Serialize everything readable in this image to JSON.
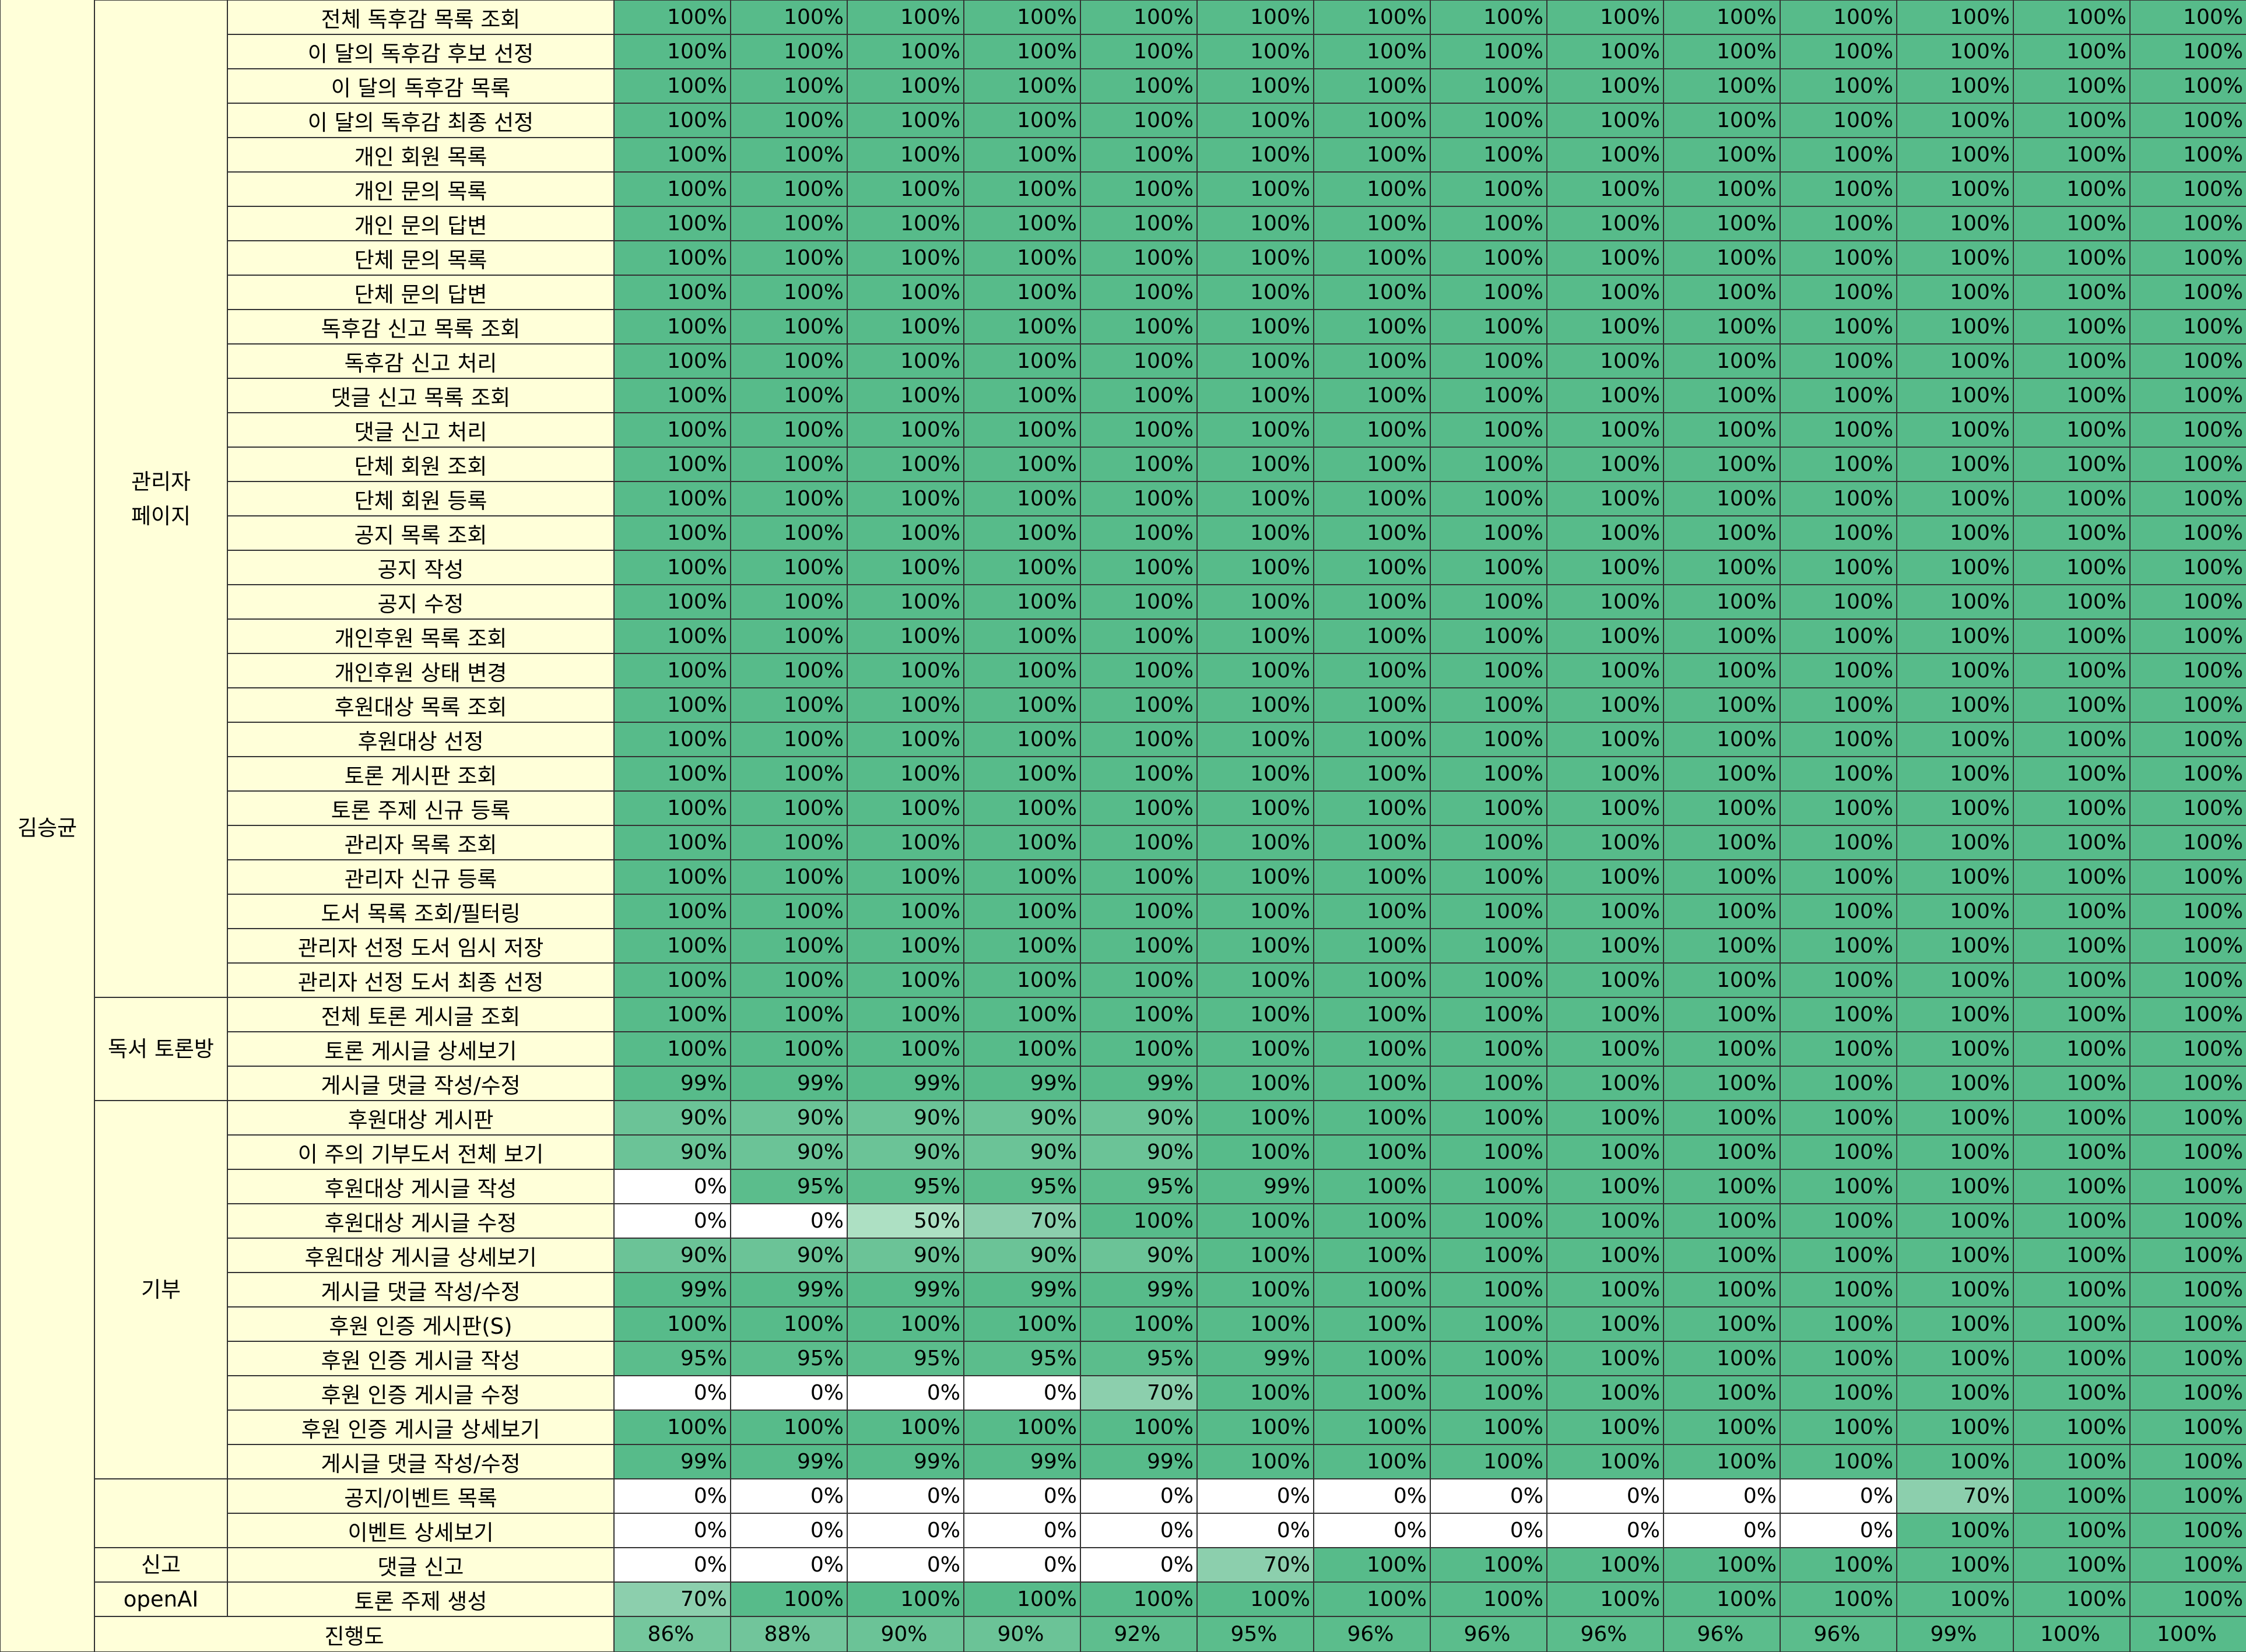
{
  "colors": {
    "label_bg": "#ffffd9",
    "grid_line": "#333333",
    "p100": "#57bb8a",
    "p99": "#57bb8a",
    "p95": "#5bbd8c",
    "p92": "#5ebe8e",
    "p90": "#6bc397",
    "p88": "#71c59b",
    "p86": "#74c79d",
    "p70": "#8ccfad",
    "p50": "#ade0c3",
    "p0": "#ffffff"
  },
  "groups": [
    {
      "name": "김승균",
      "row_start": 0,
      "row_count": 46
    }
  ],
  "categories": [
    {
      "label": "관리자\n페이지",
      "row_start": 0,
      "row_count": 29
    },
    {
      "label": "독서 토론방",
      "row_start": 29,
      "row_count": 3
    },
    {
      "label": "",
      "row_start": 32,
      "row_count": 11
    },
    {
      "label": "기부",
      "row_start": 32,
      "row_count": 11
    },
    {
      "label": "",
      "row_start": 43,
      "row_count": 2
    },
    {
      "label": "신고",
      "row_start": 45,
      "row_count": 1
    },
    {
      "label": "openAI",
      "row_start": 46,
      "row_count": 1
    }
  ],
  "rows": [
    {
      "feature": "전체 독후감 목록 조회",
      "values": [
        "100%",
        "100%",
        "100%",
        "100%",
        "100%",
        "100%",
        "100%",
        "100%",
        "100%",
        "100%",
        "100%",
        "100%",
        "100%",
        "100%"
      ]
    },
    {
      "feature": "이 달의 독후감 후보 선정",
      "values": [
        "100%",
        "100%",
        "100%",
        "100%",
        "100%",
        "100%",
        "100%",
        "100%",
        "100%",
        "100%",
        "100%",
        "100%",
        "100%",
        "100%"
      ]
    },
    {
      "feature": "이 달의 독후감 목록",
      "values": [
        "100%",
        "100%",
        "100%",
        "100%",
        "100%",
        "100%",
        "100%",
        "100%",
        "100%",
        "100%",
        "100%",
        "100%",
        "100%",
        "100%"
      ]
    },
    {
      "feature": "이 달의 독후감 최종 선정",
      "values": [
        "100%",
        "100%",
        "100%",
        "100%",
        "100%",
        "100%",
        "100%",
        "100%",
        "100%",
        "100%",
        "100%",
        "100%",
        "100%",
        "100%"
      ]
    },
    {
      "feature": "개인 회원 목록",
      "values": [
        "100%",
        "100%",
        "100%",
        "100%",
        "100%",
        "100%",
        "100%",
        "100%",
        "100%",
        "100%",
        "100%",
        "100%",
        "100%",
        "100%"
      ]
    },
    {
      "feature": "개인 문의 목록",
      "values": [
        "100%",
        "100%",
        "100%",
        "100%",
        "100%",
        "100%",
        "100%",
        "100%",
        "100%",
        "100%",
        "100%",
        "100%",
        "100%",
        "100%"
      ]
    },
    {
      "feature": "개인 문의 답변",
      "values": [
        "100%",
        "100%",
        "100%",
        "100%",
        "100%",
        "100%",
        "100%",
        "100%",
        "100%",
        "100%",
        "100%",
        "100%",
        "100%",
        "100%"
      ]
    },
    {
      "feature": "단체 문의 목록",
      "values": [
        "100%",
        "100%",
        "100%",
        "100%",
        "100%",
        "100%",
        "100%",
        "100%",
        "100%",
        "100%",
        "100%",
        "100%",
        "100%",
        "100%"
      ]
    },
    {
      "feature": "단체 문의 답변",
      "values": [
        "100%",
        "100%",
        "100%",
        "100%",
        "100%",
        "100%",
        "100%",
        "100%",
        "100%",
        "100%",
        "100%",
        "100%",
        "100%",
        "100%"
      ]
    },
    {
      "feature": "독후감 신고 목록 조회",
      "values": [
        "100%",
        "100%",
        "100%",
        "100%",
        "100%",
        "100%",
        "100%",
        "100%",
        "100%",
        "100%",
        "100%",
        "100%",
        "100%",
        "100%"
      ]
    },
    {
      "feature": "독후감 신고 처리",
      "values": [
        "100%",
        "100%",
        "100%",
        "100%",
        "100%",
        "100%",
        "100%",
        "100%",
        "100%",
        "100%",
        "100%",
        "100%",
        "100%",
        "100%"
      ]
    },
    {
      "feature": "댓글 신고 목록 조회",
      "values": [
        "100%",
        "100%",
        "100%",
        "100%",
        "100%",
        "100%",
        "100%",
        "100%",
        "100%",
        "100%",
        "100%",
        "100%",
        "100%",
        "100%"
      ]
    },
    {
      "feature": "댓글 신고 처리",
      "values": [
        "100%",
        "100%",
        "100%",
        "100%",
        "100%",
        "100%",
        "100%",
        "100%",
        "100%",
        "100%",
        "100%",
        "100%",
        "100%",
        "100%"
      ]
    },
    {
      "feature": "단체 회원 조회",
      "values": [
        "100%",
        "100%",
        "100%",
        "100%",
        "100%",
        "100%",
        "100%",
        "100%",
        "100%",
        "100%",
        "100%",
        "100%",
        "100%",
        "100%"
      ]
    },
    {
      "feature": "단체 회원 등록",
      "values": [
        "100%",
        "100%",
        "100%",
        "100%",
        "100%",
        "100%",
        "100%",
        "100%",
        "100%",
        "100%",
        "100%",
        "100%",
        "100%",
        "100%"
      ]
    },
    {
      "feature": "공지 목록 조회",
      "values": [
        "100%",
        "100%",
        "100%",
        "100%",
        "100%",
        "100%",
        "100%",
        "100%",
        "100%",
        "100%",
        "100%",
        "100%",
        "100%",
        "100%"
      ]
    },
    {
      "feature": "공지 작성",
      "values": [
        "100%",
        "100%",
        "100%",
        "100%",
        "100%",
        "100%",
        "100%",
        "100%",
        "100%",
        "100%",
        "100%",
        "100%",
        "100%",
        "100%"
      ]
    },
    {
      "feature": "공지 수정",
      "values": [
        "100%",
        "100%",
        "100%",
        "100%",
        "100%",
        "100%",
        "100%",
        "100%",
        "100%",
        "100%",
        "100%",
        "100%",
        "100%",
        "100%"
      ]
    },
    {
      "feature": "개인후원 목록 조회",
      "values": [
        "100%",
        "100%",
        "100%",
        "100%",
        "100%",
        "100%",
        "100%",
        "100%",
        "100%",
        "100%",
        "100%",
        "100%",
        "100%",
        "100%"
      ]
    },
    {
      "feature": "개인후원 상태 변경",
      "values": [
        "100%",
        "100%",
        "100%",
        "100%",
        "100%",
        "100%",
        "100%",
        "100%",
        "100%",
        "100%",
        "100%",
        "100%",
        "100%",
        "100%"
      ]
    },
    {
      "feature": "후원대상 목록 조회",
      "values": [
        "100%",
        "100%",
        "100%",
        "100%",
        "100%",
        "100%",
        "100%",
        "100%",
        "100%",
        "100%",
        "100%",
        "100%",
        "100%",
        "100%"
      ]
    },
    {
      "feature": "후원대상 선정",
      "values": [
        "100%",
        "100%",
        "100%",
        "100%",
        "100%",
        "100%",
        "100%",
        "100%",
        "100%",
        "100%",
        "100%",
        "100%",
        "100%",
        "100%"
      ]
    },
    {
      "feature": "토론 게시판 조회",
      "values": [
        "100%",
        "100%",
        "100%",
        "100%",
        "100%",
        "100%",
        "100%",
        "100%",
        "100%",
        "100%",
        "100%",
        "100%",
        "100%",
        "100%"
      ]
    },
    {
      "feature": "토론 주제 신규 등록",
      "values": [
        "100%",
        "100%",
        "100%",
        "100%",
        "100%",
        "100%",
        "100%",
        "100%",
        "100%",
        "100%",
        "100%",
        "100%",
        "100%",
        "100%"
      ]
    },
    {
      "feature": "관리자 목록 조회",
      "values": [
        "100%",
        "100%",
        "100%",
        "100%",
        "100%",
        "100%",
        "100%",
        "100%",
        "100%",
        "100%",
        "100%",
        "100%",
        "100%",
        "100%"
      ]
    },
    {
      "feature": "관리자 신규 등록",
      "values": [
        "100%",
        "100%",
        "100%",
        "100%",
        "100%",
        "100%",
        "100%",
        "100%",
        "100%",
        "100%",
        "100%",
        "100%",
        "100%",
        "100%"
      ]
    },
    {
      "feature": "도서 목록 조회/필터링",
      "values": [
        "100%",
        "100%",
        "100%",
        "100%",
        "100%",
        "100%",
        "100%",
        "100%",
        "100%",
        "100%",
        "100%",
        "100%",
        "100%",
        "100%"
      ]
    },
    {
      "feature": "관리자 선정 도서 임시 저장",
      "values": [
        "100%",
        "100%",
        "100%",
        "100%",
        "100%",
        "100%",
        "100%",
        "100%",
        "100%",
        "100%",
        "100%",
        "100%",
        "100%",
        "100%"
      ]
    },
    {
      "feature": "관리자 선정 도서 최종 선정",
      "values": [
        "100%",
        "100%",
        "100%",
        "100%",
        "100%",
        "100%",
        "100%",
        "100%",
        "100%",
        "100%",
        "100%",
        "100%",
        "100%",
        "100%"
      ]
    },
    {
      "feature": "전체 토론 게시글 조회",
      "values": [
        "100%",
        "100%",
        "100%",
        "100%",
        "100%",
        "100%",
        "100%",
        "100%",
        "100%",
        "100%",
        "100%",
        "100%",
        "100%",
        "100%"
      ]
    },
    {
      "feature": "토론 게시글 상세보기",
      "values": [
        "100%",
        "100%",
        "100%",
        "100%",
        "100%",
        "100%",
        "100%",
        "100%",
        "100%",
        "100%",
        "100%",
        "100%",
        "100%",
        "100%"
      ]
    },
    {
      "feature": "게시글 댓글 작성/수정",
      "values": [
        "99%",
        "99%",
        "99%",
        "99%",
        "99%",
        "100%",
        "100%",
        "100%",
        "100%",
        "100%",
        "100%",
        "100%",
        "100%",
        "100%"
      ]
    },
    {
      "feature": "후원대상 게시판",
      "values": [
        "90%",
        "90%",
        "90%",
        "90%",
        "90%",
        "100%",
        "100%",
        "100%",
        "100%",
        "100%",
        "100%",
        "100%",
        "100%",
        "100%"
      ]
    },
    {
      "feature": "이 주의 기부도서 전체 보기",
      "values": [
        "90%",
        "90%",
        "90%",
        "90%",
        "90%",
        "100%",
        "100%",
        "100%",
        "100%",
        "100%",
        "100%",
        "100%",
        "100%",
        "100%"
      ]
    },
    {
      "feature": "후원대상 게시글 작성",
      "values": [
        "0%",
        "95%",
        "95%",
        "95%",
        "95%",
        "99%",
        "100%",
        "100%",
        "100%",
        "100%",
        "100%",
        "100%",
        "100%",
        "100%"
      ]
    },
    {
      "feature": "후원대상 게시글 수정",
      "values": [
        "0%",
        "0%",
        "50%",
        "70%",
        "100%",
        "100%",
        "100%",
        "100%",
        "100%",
        "100%",
        "100%",
        "100%",
        "100%",
        "100%"
      ]
    },
    {
      "feature": "후원대상 게시글 상세보기",
      "values": [
        "90%",
        "90%",
        "90%",
        "90%",
        "90%",
        "100%",
        "100%",
        "100%",
        "100%",
        "100%",
        "100%",
        "100%",
        "100%",
        "100%"
      ]
    },
    {
      "feature": "게시글 댓글 작성/수정",
      "values": [
        "99%",
        "99%",
        "99%",
        "99%",
        "99%",
        "100%",
        "100%",
        "100%",
        "100%",
        "100%",
        "100%",
        "100%",
        "100%",
        "100%"
      ]
    },
    {
      "feature": "후원 인증 게시판(S)",
      "values": [
        "100%",
        "100%",
        "100%",
        "100%",
        "100%",
        "100%",
        "100%",
        "100%",
        "100%",
        "100%",
        "100%",
        "100%",
        "100%",
        "100%"
      ]
    },
    {
      "feature": "후원 인증 게시글 작성",
      "values": [
        "95%",
        "95%",
        "95%",
        "95%",
        "95%",
        "99%",
        "100%",
        "100%",
        "100%",
        "100%",
        "100%",
        "100%",
        "100%",
        "100%"
      ]
    },
    {
      "feature": "후원 인증 게시글 수정",
      "values": [
        "0%",
        "0%",
        "0%",
        "0%",
        "70%",
        "100%",
        "100%",
        "100%",
        "100%",
        "100%",
        "100%",
        "100%",
        "100%",
        "100%"
      ]
    },
    {
      "feature": "후원 인증 게시글 상세보기",
      "values": [
        "100%",
        "100%",
        "100%",
        "100%",
        "100%",
        "100%",
        "100%",
        "100%",
        "100%",
        "100%",
        "100%",
        "100%",
        "100%",
        "100%"
      ]
    },
    {
      "feature": "게시글 댓글 작성/수정",
      "values": [
        "99%",
        "99%",
        "99%",
        "99%",
        "99%",
        "100%",
        "100%",
        "100%",
        "100%",
        "100%",
        "100%",
        "100%",
        "100%",
        "100%"
      ]
    },
    {
      "feature": "공지/이벤트 목록",
      "values": [
        "0%",
        "0%",
        "0%",
        "0%",
        "0%",
        "0%",
        "0%",
        "0%",
        "0%",
        "0%",
        "0%",
        "70%",
        "100%",
        "100%"
      ]
    },
    {
      "feature": "이벤트 상세보기",
      "values": [
        "0%",
        "0%",
        "0%",
        "0%",
        "0%",
        "0%",
        "0%",
        "0%",
        "0%",
        "0%",
        "0%",
        "100%",
        "100%",
        "100%"
      ]
    },
    {
      "feature": "댓글 신고",
      "values": [
        "0%",
        "0%",
        "0%",
        "0%",
        "0%",
        "70%",
        "100%",
        "100%",
        "100%",
        "100%",
        "100%",
        "100%",
        "100%",
        "100%"
      ]
    },
    {
      "feature": "토론 주제 생성",
      "values": [
        "70%",
        "100%",
        "100%",
        "100%",
        "100%",
        "100%",
        "100%",
        "100%",
        "100%",
        "100%",
        "100%",
        "100%",
        "100%",
        "100%"
      ]
    }
  ],
  "progress": {
    "label": "진행도",
    "values": [
      "86%",
      "88%",
      "90%",
      "90%",
      "92%",
      "95%",
      "96%",
      "96%",
      "96%",
      "96%",
      "96%",
      "99%",
      "100%",
      "100%"
    ]
  }
}
